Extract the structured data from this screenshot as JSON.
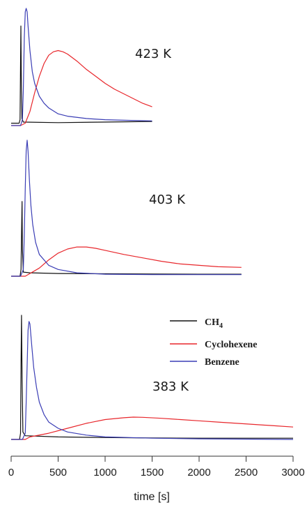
{
  "chart_data": {
    "type": "line",
    "xlabel": "time [s]",
    "xlim": [
      0,
      3000
    ],
    "xticks": [
      "0",
      "500",
      "1000",
      "1500",
      "2000",
      "2500",
      "3000"
    ],
    "legend": {
      "placement": "right of bottom panel",
      "entries": [
        {
          "base": "CH",
          "sub": "4",
          "color": "#111111"
        },
        {
          "base": "Cyclohexene",
          "sub": "",
          "color": "#e8262b"
        },
        {
          "base": "Benzene",
          "sub": "",
          "color": "#3a3db5"
        }
      ]
    },
    "panels": [
      {
        "label": "423 K",
        "x_end": 1500,
        "series": [
          {
            "color": "#111111",
            "points": [
              [
                0,
                0.02
              ],
              [
                85,
                0.02
              ],
              [
                95,
                0.05
              ],
              [
                100,
                0.52
              ],
              [
                104,
                0.85
              ],
              [
                108,
                0.4
              ],
              [
                115,
                0.06
              ],
              [
                130,
                0.03
              ],
              [
                500,
                0.025
              ],
              [
                1000,
                0.03
              ],
              [
                1500,
                0.035
              ]
            ]
          },
          {
            "color": "#e8262b",
            "points": [
              [
                0,
                0.0
              ],
              [
                100,
                0.0
              ],
              [
                150,
                0.02
              ],
              [
                200,
                0.12
              ],
              [
                250,
                0.28
              ],
              [
                300,
                0.42
              ],
              [
                350,
                0.53
              ],
              [
                400,
                0.6
              ],
              [
                450,
                0.63
              ],
              [
                500,
                0.64
              ],
              [
                550,
                0.63
              ],
              [
                600,
                0.61
              ],
              [
                700,
                0.55
              ],
              [
                800,
                0.48
              ],
              [
                900,
                0.42
              ],
              [
                1000,
                0.36
              ],
              [
                1100,
                0.31
              ],
              [
                1200,
                0.27
              ],
              [
                1300,
                0.23
              ],
              [
                1400,
                0.19
              ],
              [
                1500,
                0.16
              ]
            ]
          },
          {
            "color": "#3a3db5",
            "points": [
              [
                0,
                0.0
              ],
              [
                100,
                0.0
              ],
              [
                120,
                0.05
              ],
              [
                130,
                0.3
              ],
              [
                140,
                0.75
              ],
              [
                150,
                0.97
              ],
              [
                160,
                1.0
              ],
              [
                170,
                0.97
              ],
              [
                180,
                0.85
              ],
              [
                200,
                0.64
              ],
              [
                225,
                0.46
              ],
              [
                250,
                0.36
              ],
              [
                300,
                0.25
              ],
              [
                350,
                0.19
              ],
              [
                400,
                0.15
              ],
              [
                500,
                0.1
              ],
              [
                600,
                0.08
              ],
              [
                800,
                0.06
              ],
              [
                1000,
                0.05
              ],
              [
                1200,
                0.045
              ],
              [
                1500,
                0.04
              ]
            ]
          }
        ]
      },
      {
        "label": "403 K",
        "x_end": 2450,
        "series": [
          {
            "color": "#111111",
            "points": [
              [
                0,
                0.0
              ],
              [
                95,
                0.0
              ],
              [
                105,
                0.05
              ],
              [
                110,
                0.3
              ],
              [
                116,
                0.55
              ],
              [
                120,
                0.2
              ],
              [
                130,
                0.03
              ],
              [
                200,
                0.025
              ],
              [
                500,
                0.02
              ],
              [
                1000,
                0.018
              ],
              [
                1500,
                0.016
              ],
              [
                2000,
                0.015
              ],
              [
                2450,
                0.015
              ]
            ]
          },
          {
            "color": "#e8262b",
            "points": [
              [
                0,
                0.0
              ],
              [
                150,
                0.0
              ],
              [
                200,
                0.02
              ],
              [
                300,
                0.06
              ],
              [
                400,
                0.12
              ],
              [
                500,
                0.17
              ],
              [
                600,
                0.2
              ],
              [
                700,
                0.215
              ],
              [
                800,
                0.215
              ],
              [
                900,
                0.205
              ],
              [
                1000,
                0.19
              ],
              [
                1200,
                0.16
              ],
              [
                1400,
                0.135
              ],
              [
                1600,
                0.11
              ],
              [
                1800,
                0.09
              ],
              [
                2000,
                0.08
              ],
              [
                2200,
                0.07
              ],
              [
                2450,
                0.065
              ]
            ]
          },
          {
            "color": "#3a3db5",
            "points": [
              [
                0,
                0.0
              ],
              [
                100,
                0.0
              ],
              [
                130,
                0.05
              ],
              [
                140,
                0.3
              ],
              [
                150,
                0.65
              ],
              [
                160,
                0.92
              ],
              [
                170,
                1.0
              ],
              [
                180,
                0.92
              ],
              [
                195,
                0.7
              ],
              [
                210,
                0.52
              ],
              [
                230,
                0.38
              ],
              [
                260,
                0.25
              ],
              [
                300,
                0.16
              ],
              [
                400,
                0.08
              ],
              [
                500,
                0.05
              ],
              [
                700,
                0.025
              ],
              [
                1000,
                0.015
              ],
              [
                1500,
                0.012
              ],
              [
                2000,
                0.012
              ],
              [
                2450,
                0.012
              ]
            ]
          }
        ]
      },
      {
        "label": "383 K",
        "x_end": 3000,
        "series": [
          {
            "color": "#111111",
            "points": [
              [
                0,
                0.0
              ],
              [
                90,
                0.0
              ],
              [
                100,
                0.05
              ],
              [
                105,
                0.6
              ],
              [
                110,
                1.0
              ],
              [
                116,
                0.5
              ],
              [
                125,
                0.06
              ],
              [
                150,
                0.03
              ],
              [
                500,
                0.02
              ],
              [
                1000,
                0.015
              ],
              [
                1500,
                0.012
              ],
              [
                2000,
                0.01
              ],
              [
                2500,
                0.01
              ],
              [
                3000,
                0.01
              ]
            ]
          },
          {
            "color": "#e8262b",
            "points": [
              [
                0,
                0.0
              ],
              [
                150,
                0.0
              ],
              [
                200,
                0.02
              ],
              [
                400,
                0.05
              ],
              [
                600,
                0.09
              ],
              [
                800,
                0.13
              ],
              [
                1000,
                0.16
              ],
              [
                1200,
                0.175
              ],
              [
                1300,
                0.18
              ],
              [
                1400,
                0.178
              ],
              [
                1600,
                0.17
              ],
              [
                1800,
                0.16
              ],
              [
                2000,
                0.15
              ],
              [
                2200,
                0.14
              ],
              [
                2400,
                0.13
              ],
              [
                2600,
                0.12
              ],
              [
                2800,
                0.11
              ],
              [
                3000,
                0.1
              ]
            ]
          },
          {
            "color": "#3a3db5",
            "points": [
              [
                0,
                0.0
              ],
              [
                120,
                0.0
              ],
              [
                150,
                0.05
              ],
              [
                160,
                0.3
              ],
              [
                170,
                0.6
              ],
              [
                180,
                0.88
              ],
              [
                190,
                0.95
              ],
              [
                200,
                0.93
              ],
              [
                220,
                0.75
              ],
              [
                240,
                0.58
              ],
              [
                270,
                0.42
              ],
              [
                300,
                0.3
              ],
              [
                350,
                0.2
              ],
              [
                400,
                0.14
              ],
              [
                500,
                0.09
              ],
              [
                600,
                0.06
              ],
              [
                800,
                0.035
              ],
              [
                1000,
                0.02
              ],
              [
                1500,
                0.01
              ],
              [
                2000,
                0.005
              ],
              [
                3000,
                0.0
              ]
            ]
          }
        ]
      }
    ]
  }
}
